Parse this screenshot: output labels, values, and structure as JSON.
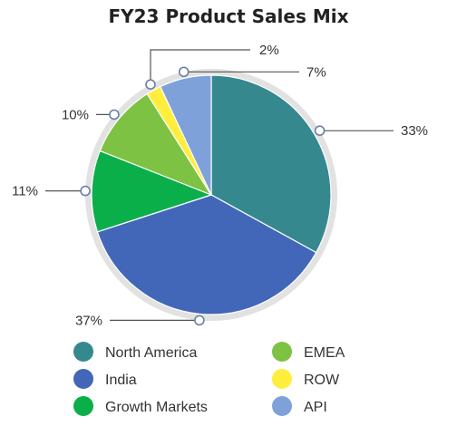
{
  "chart_data": {
    "type": "pie",
    "title": "FY23 Product Sales Mix",
    "slices": [
      {
        "label": "North America",
        "value": 33,
        "display": "33%",
        "color": "#36888F"
      },
      {
        "label": "India",
        "value": 37,
        "display": "37%",
        "color": "#4267B8"
      },
      {
        "label": "Growth Markets",
        "value": 11,
        "display": "11%",
        "color": "#0BAF4A"
      },
      {
        "label": "EMEA",
        "value": 10,
        "display": "10%",
        "color": "#7DC242"
      },
      {
        "label": "ROW",
        "value": 2,
        "display": "2%",
        "color": "#FFEE3D"
      },
      {
        "label": "API",
        "value": 7,
        "display": "7%",
        "color": "#7FA1D9"
      }
    ],
    "legend_placement": "bottom",
    "legend_order": [
      "North America",
      "EMEA",
      "India",
      "ROW",
      "Growth Markets",
      "API"
    ]
  }
}
